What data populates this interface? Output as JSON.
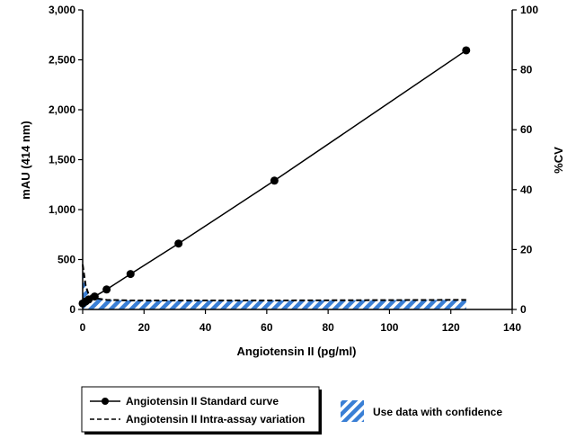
{
  "chart_data": {
    "type": "line",
    "xlabel": "Angiotensin II (pg/ml)",
    "ylabel": "mAU (414 nm)",
    "y2label": "%CV",
    "xlim": [
      0,
      140
    ],
    "ylim": [
      0,
      3000
    ],
    "y2lim": [
      0,
      100
    ],
    "x_ticks": [
      "0",
      "20",
      "40",
      "60",
      "80",
      "100",
      "120",
      "140"
    ],
    "y_ticks": [
      "0",
      "500",
      "1,000",
      "1,500",
      "2,000",
      "2,500",
      "3,000"
    ],
    "y2_ticks": [
      "0",
      "20",
      "40",
      "60",
      "80",
      "100"
    ],
    "grid": false,
    "legend_position": "bottom",
    "series": [
      {
        "name": "Angiotensin II Standard curve",
        "axis": "left",
        "style": "solid-with-markers",
        "color": "#000000",
        "x": [
          0,
          0.98,
          1.95,
          3.9,
          7.8,
          15.6,
          31.25,
          62.5,
          125
        ],
        "y": [
          60,
          80,
          100,
          130,
          200,
          355,
          660,
          1290,
          2595
        ]
      },
      {
        "name": "Angiotensin II Intra-assay variation",
        "axis": "right",
        "style": "dashed",
        "color": "#000000",
        "x": [
          0,
          0.98,
          1.95,
          3.9,
          7.8,
          15.6,
          31.25,
          62.5,
          125
        ],
        "y": [
          15,
          8,
          5,
          3.8,
          3.2,
          3,
          3,
          3,
          3.2
        ]
      }
    ],
    "shaded_region": {
      "label": "Use data with confidence",
      "x": [
        0,
        125
      ],
      "fill_color": "#3a7fd5",
      "pattern": "diagonal-stripes"
    }
  }
}
